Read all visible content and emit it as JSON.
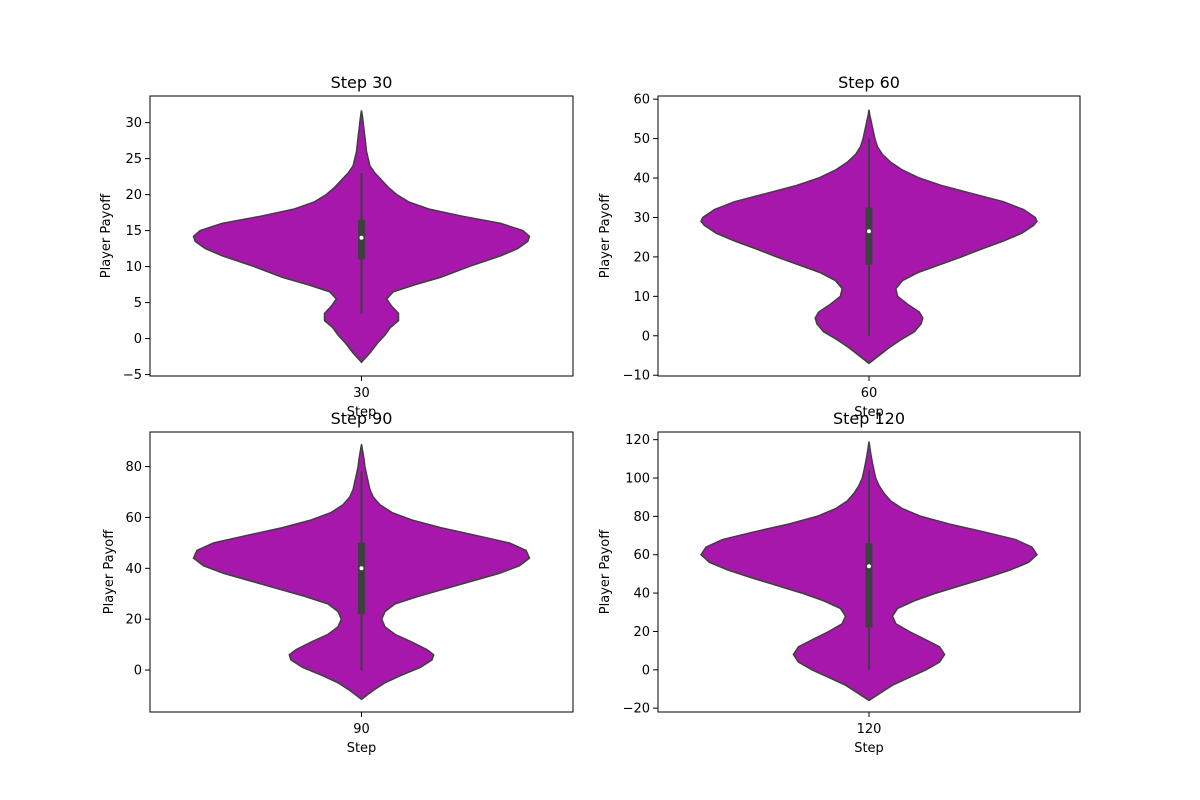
{
  "chart_data": [
    {
      "type": "violin",
      "title": "Step 30",
      "xlabel": "Step",
      "ylabel": "Player Payoff",
      "categories": [
        "30"
      ],
      "ylim": [
        -5.2,
        33.7
      ],
      "yticks": [
        -5,
        0,
        5,
        10,
        15,
        20,
        25,
        30
      ],
      "color": "#a817ab",
      "box": {
        "whisker_low": 3.5,
        "q1": 11.0,
        "median": 14.0,
        "q3": 16.5,
        "whisker_high": 23.0
      },
      "density": [
        [
          -3.3,
          0.0
        ],
        [
          -2.0,
          0.05
        ],
        [
          -0.5,
          0.1
        ],
        [
          0.5,
          0.14
        ],
        [
          1.5,
          0.17
        ],
        [
          2.5,
          0.22
        ],
        [
          3.5,
          0.22
        ],
        [
          4.5,
          0.18
        ],
        [
          5.5,
          0.15
        ],
        [
          6.5,
          0.19
        ],
        [
          7.5,
          0.32
        ],
        [
          8.5,
          0.47
        ],
        [
          10,
          0.64
        ],
        [
          11.5,
          0.83
        ],
        [
          12.5,
          0.93
        ],
        [
          13.5,
          0.99
        ],
        [
          14.2,
          1.0
        ],
        [
          15,
          0.96
        ],
        [
          16,
          0.83
        ],
        [
          17,
          0.6
        ],
        [
          18,
          0.4
        ],
        [
          19,
          0.28
        ],
        [
          20,
          0.21
        ],
        [
          21,
          0.16
        ],
        [
          22,
          0.12
        ],
        [
          23,
          0.08
        ],
        [
          24,
          0.05
        ],
        [
          25,
          0.04
        ],
        [
          26,
          0.03
        ],
        [
          27,
          0.025
        ],
        [
          28,
          0.02
        ],
        [
          29,
          0.015
        ],
        [
          30,
          0.01
        ],
        [
          31,
          0.005
        ],
        [
          31.7,
          0.0
        ]
      ]
    },
    {
      "type": "violin",
      "title": "Step 60",
      "xlabel": "Step",
      "ylabel": "Player Payoff",
      "categories": [
        "60"
      ],
      "ylim": [
        -10.2,
        60.8
      ],
      "yticks": [
        -10,
        0,
        10,
        20,
        30,
        40,
        50,
        60
      ],
      "color": "#a817ab",
      "box": {
        "whisker_low": 0.0,
        "q1": 18.0,
        "median": 26.5,
        "q3": 32.5,
        "whisker_high": 50.0
      },
      "density": [
        [
          -7.0,
          0.0
        ],
        [
          -5.0,
          0.06
        ],
        [
          -3.0,
          0.12
        ],
        [
          -1.0,
          0.19
        ],
        [
          1.0,
          0.27
        ],
        [
          3.0,
          0.31
        ],
        [
          4.5,
          0.32
        ],
        [
          6.0,
          0.3
        ],
        [
          8.0,
          0.23
        ],
        [
          10.0,
          0.17
        ],
        [
          12.0,
          0.16
        ],
        [
          14.0,
          0.2
        ],
        [
          16.0,
          0.29
        ],
        [
          18.0,
          0.42
        ],
        [
          20.0,
          0.55
        ],
        [
          22.0,
          0.67
        ],
        [
          24.0,
          0.8
        ],
        [
          26.0,
          0.91
        ],
        [
          28.0,
          0.98
        ],
        [
          29.0,
          1.0
        ],
        [
          30.0,
          0.99
        ],
        [
          32.0,
          0.92
        ],
        [
          34.0,
          0.8
        ],
        [
          36.0,
          0.62
        ],
        [
          38.0,
          0.44
        ],
        [
          40.0,
          0.3
        ],
        [
          42.0,
          0.2
        ],
        [
          44.0,
          0.13
        ],
        [
          46.0,
          0.08
        ],
        [
          48.0,
          0.05
        ],
        [
          50.0,
          0.035
        ],
        [
          52.0,
          0.025
        ],
        [
          54.0,
          0.015
        ],
        [
          56.0,
          0.005
        ],
        [
          57.3,
          0.0
        ]
      ]
    },
    {
      "type": "violin",
      "title": "Step 90",
      "xlabel": "Step",
      "ylabel": "Player Payoff",
      "categories": [
        "90"
      ],
      "ylim": [
        -16.5,
        93.6
      ],
      "yticks": [
        0,
        20,
        40,
        60,
        80
      ],
      "color": "#a817ab",
      "box": {
        "whisker_low": 0.0,
        "q1": 22.0,
        "median": 40.0,
        "q3": 50.0,
        "whisker_high": 78.0
      },
      "density": [
        [
          -11.5,
          0.0
        ],
        [
          -8.0,
          0.07
        ],
        [
          -5.0,
          0.14
        ],
        [
          -2.0,
          0.24
        ],
        [
          1.0,
          0.35
        ],
        [
          4.0,
          0.42
        ],
        [
          6.0,
          0.43
        ],
        [
          8.0,
          0.39
        ],
        [
          11.0,
          0.3
        ],
        [
          14.0,
          0.2
        ],
        [
          17.0,
          0.14
        ],
        [
          20.0,
          0.12
        ],
        [
          23.0,
          0.14
        ],
        [
          26.0,
          0.2
        ],
        [
          29.0,
          0.34
        ],
        [
          32.0,
          0.5
        ],
        [
          35.0,
          0.66
        ],
        [
          38.0,
          0.82
        ],
        [
          41.0,
          0.94
        ],
        [
          44.0,
          1.0
        ],
        [
          47.0,
          0.98
        ],
        [
          50.0,
          0.88
        ],
        [
          53.0,
          0.68
        ],
        [
          56.0,
          0.47
        ],
        [
          59.0,
          0.3
        ],
        [
          62.0,
          0.18
        ],
        [
          65.0,
          0.11
        ],
        [
          68.0,
          0.07
        ],
        [
          71.0,
          0.05
        ],
        [
          74.0,
          0.04
        ],
        [
          77.0,
          0.03
        ],
        [
          80.0,
          0.02
        ],
        [
          83.0,
          0.015
        ],
        [
          86.0,
          0.007
        ],
        [
          88.8,
          0.0
        ]
      ]
    },
    {
      "type": "violin",
      "title": "Step 120",
      "xlabel": "Step",
      "ylabel": "Player Payoff",
      "categories": [
        "120"
      ],
      "ylim": [
        -22.0,
        124.0
      ],
      "yticks": [
        -20,
        0,
        20,
        40,
        60,
        80,
        100,
        120
      ],
      "color": "#a817ab",
      "box": {
        "whisker_low": 0.0,
        "q1": 22.0,
        "median": 54.0,
        "q3": 66.0,
        "whisker_high": 104.0
      },
      "density": [
        [
          -16.0,
          0.0
        ],
        [
          -12.0,
          0.07
        ],
        [
          -8.0,
          0.14
        ],
        [
          -4.0,
          0.24
        ],
        [
          0.0,
          0.34
        ],
        [
          4.0,
          0.42
        ],
        [
          8.0,
          0.45
        ],
        [
          12.0,
          0.42
        ],
        [
          16.0,
          0.33
        ],
        [
          20.0,
          0.24
        ],
        [
          24.0,
          0.16
        ],
        [
          28.0,
          0.14
        ],
        [
          32.0,
          0.17
        ],
        [
          36.0,
          0.27
        ],
        [
          40.0,
          0.4
        ],
        [
          44.0,
          0.55
        ],
        [
          48.0,
          0.7
        ],
        [
          52.0,
          0.84
        ],
        [
          56.0,
          0.95
        ],
        [
          60.0,
          1.0
        ],
        [
          64.0,
          0.97
        ],
        [
          68.0,
          0.87
        ],
        [
          72.0,
          0.68
        ],
        [
          76.0,
          0.48
        ],
        [
          80.0,
          0.31
        ],
        [
          84.0,
          0.2
        ],
        [
          88.0,
          0.13
        ],
        [
          92.0,
          0.09
        ],
        [
          96.0,
          0.06
        ],
        [
          100.0,
          0.04
        ],
        [
          104.0,
          0.03
        ],
        [
          108.0,
          0.02
        ],
        [
          112.0,
          0.012
        ],
        [
          116.0,
          0.005
        ],
        [
          119.0,
          0.0
        ]
      ]
    }
  ]
}
